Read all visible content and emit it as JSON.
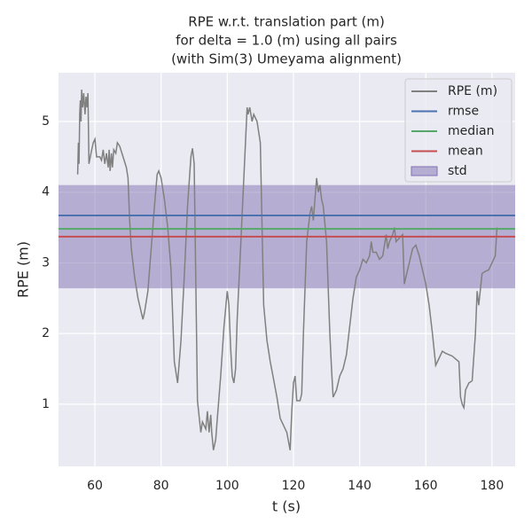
{
  "chart_data": {
    "type": "line",
    "title": [
      "RPE w.r.t. translation part (m)",
      "for delta = 1.0 (m) using all pairs",
      "(with Sim(3) Umeyama alignment)"
    ],
    "xlabel": "t (s)",
    "ylabel": "RPE (m)",
    "xlim": [
      49,
      187
    ],
    "ylim": [
      0.12,
      5.69
    ],
    "xticks": [
      60,
      80,
      100,
      120,
      140,
      160,
      180
    ],
    "yticks": [
      1,
      2,
      3,
      4,
      5
    ],
    "grid": true,
    "legend": "upper right",
    "series": [
      {
        "name": "RPE (m)",
        "color": "#808080",
        "x": [
          54.8,
          55,
          55.2,
          55.4,
          55.6,
          55.8,
          56,
          56.3,
          56.6,
          57,
          57.3,
          57.6,
          57.9,
          58.2,
          58.8,
          59.5,
          60,
          60.5,
          61.5,
          62,
          62.5,
          63,
          63.5,
          64,
          64.3,
          64.6,
          65,
          65.3,
          65.7,
          66.3,
          66.8,
          67.5,
          68.5,
          69.5,
          70,
          70.5,
          71,
          72,
          73,
          74,
          74.5,
          75,
          76,
          77,
          78,
          78.8,
          79.3,
          80,
          81,
          82,
          83,
          84,
          85,
          86,
          87,
          88,
          89,
          89.5,
          90,
          91,
          92,
          92.5,
          93,
          93.5,
          94,
          94.5,
          95,
          95.3,
          95.8,
          96.5,
          97,
          98,
          99,
          100,
          100.5,
          101,
          101.5,
          102,
          102.5,
          103,
          104,
          105,
          106,
          106.3,
          106.8,
          107.5,
          108,
          109,
          110,
          111,
          112,
          113,
          114,
          115,
          116,
          117,
          118,
          119,
          119.5,
          120,
          120.5,
          121,
          122,
          122.5,
          123,
          124,
          125,
          125.5,
          126,
          126.5,
          127,
          127.5,
          128,
          128.5,
          129,
          130,
          131,
          131.5,
          132,
          133,
          134,
          135,
          136,
          137,
          138,
          139,
          140,
          141,
          142,
          143,
          143.5,
          144,
          145,
          146,
          147,
          148,
          148.5,
          149,
          150,
          150.5,
          151,
          152,
          153,
          153.5,
          154,
          155,
          156,
          157,
          158,
          159,
          160,
          161,
          162,
          163,
          164,
          165,
          166,
          168,
          170,
          170.5,
          171,
          171.5,
          172,
          173,
          174,
          175,
          175.5,
          176,
          177,
          178,
          179,
          180,
          181,
          181.5
        ],
        "values": [
          4.25,
          4.7,
          4.4,
          5.1,
          5.3,
          5.0,
          5.45,
          5.2,
          5.4,
          5.1,
          5.35,
          5.2,
          5.4,
          4.4,
          4.55,
          4.7,
          4.75,
          4.5,
          4.5,
          4.45,
          4.6,
          4.4,
          4.55,
          4.35,
          4.6,
          4.3,
          4.55,
          4.35,
          4.6,
          4.55,
          4.7,
          4.65,
          4.5,
          4.35,
          4.2,
          3.6,
          3.2,
          2.8,
          2.5,
          2.3,
          2.2,
          2.3,
          2.6,
          3.2,
          3.8,
          4.25,
          4.3,
          4.2,
          3.9,
          3.5,
          2.9,
          1.6,
          1.3,
          1.9,
          2.8,
          3.8,
          4.5,
          4.62,
          4.4,
          1.05,
          0.6,
          0.75,
          0.7,
          0.65,
          0.9,
          0.6,
          0.85,
          0.6,
          0.35,
          0.5,
          0.8,
          1.4,
          2.1,
          2.6,
          2.4,
          1.8,
          1.4,
          1.3,
          1.5,
          2.2,
          3.2,
          4.2,
          5.2,
          5.1,
          5.2,
          5.0,
          5.1,
          5.0,
          4.7,
          2.4,
          1.9,
          1.6,
          1.35,
          1.1,
          0.8,
          0.7,
          0.6,
          0.35,
          0.9,
          1.3,
          1.4,
          1.05,
          1.05,
          1.15,
          2.0,
          3.3,
          3.7,
          3.8,
          3.6,
          3.9,
          4.2,
          4.0,
          4.1,
          3.9,
          3.8,
          3.3,
          2.0,
          1.5,
          1.1,
          1.2,
          1.4,
          1.5,
          1.7,
          2.1,
          2.5,
          2.8,
          2.9,
          3.05,
          3.0,
          3.1,
          3.3,
          3.15,
          3.15,
          3.05,
          3.1,
          3.4,
          3.2,
          3.3,
          3.4,
          3.5,
          3.3,
          3.35,
          3.4,
          2.7,
          2.8,
          3.0,
          3.2,
          3.25,
          3.1,
          2.9,
          2.7,
          2.4,
          2.0,
          1.55,
          1.65,
          1.75,
          1.72,
          1.68,
          1.6,
          1.1,
          1.0,
          0.95,
          1.2,
          1.3,
          1.33,
          2.0,
          2.6,
          2.4,
          2.85,
          2.88,
          2.9,
          3.0,
          3.1,
          3.5
        ]
      }
    ],
    "stats": [
      {
        "name": "rmse",
        "color": "#4c72b0",
        "value": 3.67
      },
      {
        "name": "median",
        "color": "#55a868",
        "value": 3.48
      },
      {
        "name": "mean",
        "color": "#c44e52",
        "value": 3.37
      }
    ],
    "std": {
      "name": "std",
      "color": "#8172b2",
      "value": 0.73
    }
  }
}
